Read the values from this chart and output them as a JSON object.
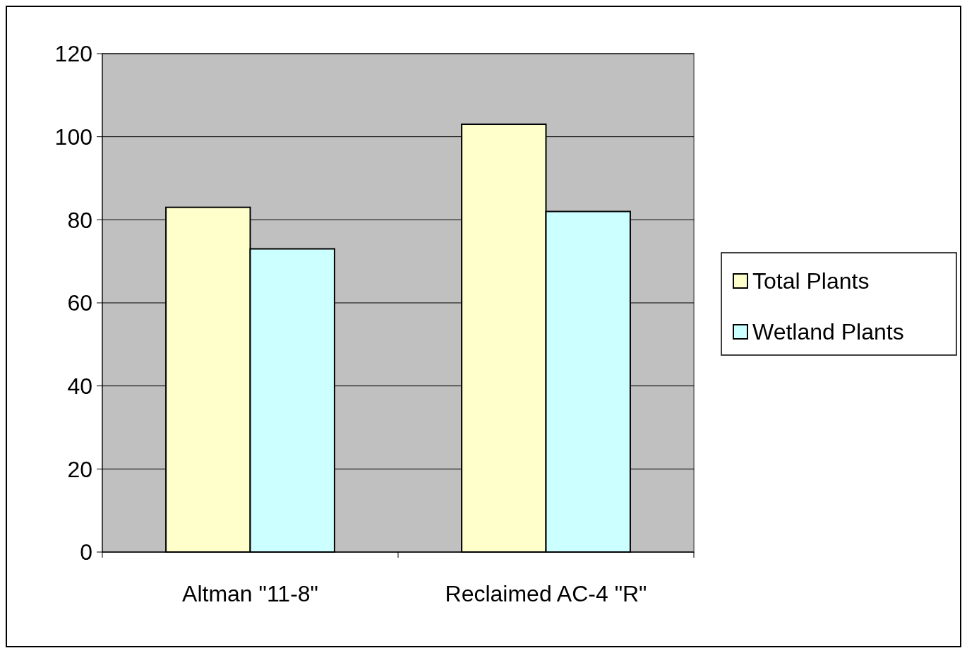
{
  "chart_data": {
    "type": "bar",
    "categories": [
      "Altman \"11-8\"",
      "Reclaimed AC-4 \"R\""
    ],
    "series": [
      {
        "name": "Total Plants",
        "color": "#ffffcc",
        "values": [
          83,
          103
        ]
      },
      {
        "name": "Wetland Plants",
        "color": "#ccffff",
        "values": [
          73,
          82
        ]
      }
    ],
    "ylim": [
      0,
      120
    ],
    "yticks": [
      0,
      20,
      40,
      60,
      80,
      100,
      120
    ],
    "grid": "y",
    "legend": "right"
  }
}
